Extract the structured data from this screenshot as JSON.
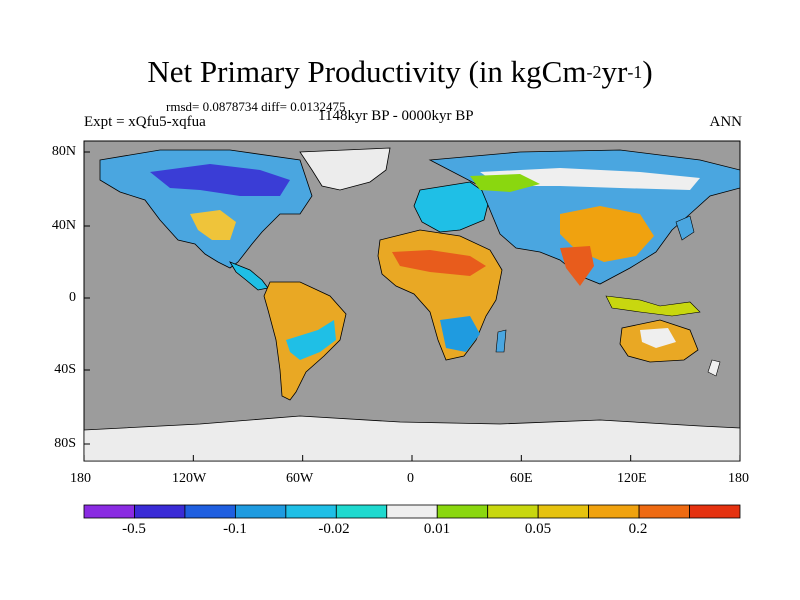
{
  "title": {
    "main": "Net Primary Productivity (in kgCm",
    "exp1": "-2",
    "mid": "yr",
    "exp2": "-1",
    "close": ")"
  },
  "subtitle_rmsd": "rmsd= 0.0878734 diff= 0.0132475",
  "experiment": "Expt = xQfu5-xqfua",
  "period": "1148kyr BP - 0000kyr BP",
  "season": "ANN",
  "axes": {
    "x_ticks": [
      "180",
      "120W",
      "60W",
      "0",
      "60E",
      "120E",
      "180"
    ],
    "y_ticks": [
      "80N",
      "40N",
      "0",
      "40S",
      "80S"
    ]
  },
  "colorbar": {
    "colors": [
      "#8a2be2",
      "#3a2bd6",
      "#1f5fe0",
      "#1f9be0",
      "#1fbfe6",
      "#1fd9cf",
      "#efefef",
      "#8ad70f",
      "#c8d70f",
      "#e6c20f",
      "#f0a20f",
      "#ee6a12",
      "#e53210"
    ],
    "labels": [
      "-0.5",
      "-0.1",
      "-0.02",
      "0.01",
      "0.05",
      "0.2"
    ]
  },
  "colors": {
    "ocean": "#9c9c9c",
    "ice": "#ececec"
  }
}
